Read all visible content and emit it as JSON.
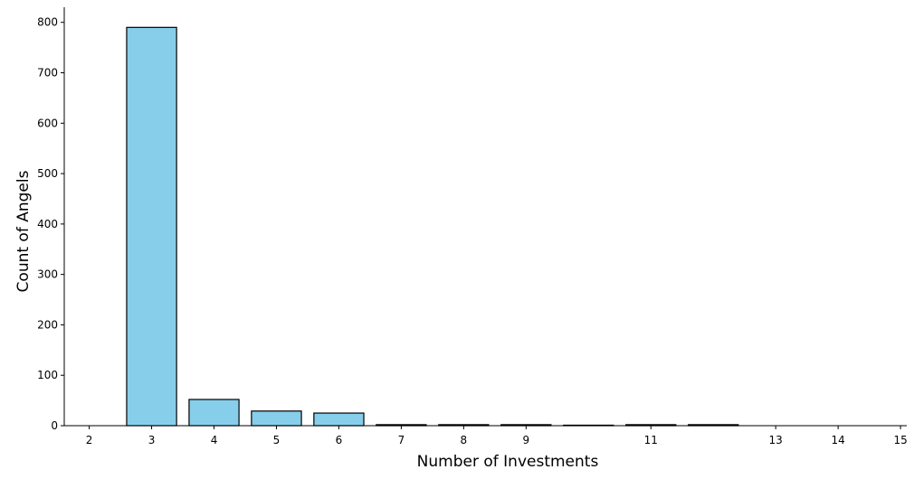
{
  "chart_data": {
    "type": "bar",
    "title": "",
    "xlabel": "Number of Investments",
    "ylabel": "Count of Angels",
    "bars": [
      {
        "x": 3,
        "value": 790
      },
      {
        "x": 4,
        "value": 52
      },
      {
        "x": 5,
        "value": 29
      },
      {
        "x": 6,
        "value": 25
      },
      {
        "x": 7,
        "value": 2
      },
      {
        "x": 8,
        "value": 2
      },
      {
        "x": 9,
        "value": 2
      },
      {
        "x": 10,
        "value": 1
      },
      {
        "x": 11,
        "value": 2
      },
      {
        "x": 12,
        "value": 2
      }
    ],
    "xticks": [
      {
        "pos": 2.0,
        "label": "2"
      },
      {
        "pos": 3.0,
        "label": "3"
      },
      {
        "pos": 4.0,
        "label": "4"
      },
      {
        "pos": 5.0,
        "label": "5"
      },
      {
        "pos": 6.0,
        "label": "6"
      },
      {
        "pos": 7.0,
        "label": "7"
      },
      {
        "pos": 8.0,
        "label": "8"
      },
      {
        "pos": 9.0,
        "label": "9"
      },
      {
        "pos": 11.0,
        "label": "11"
      },
      {
        "pos": 13.0,
        "label": "13"
      },
      {
        "pos": 14.0,
        "label": "14"
      },
      {
        "pos": 15.0,
        "label": "15"
      }
    ],
    "yticks": [
      0,
      100,
      200,
      300,
      400,
      500,
      600,
      700,
      800
    ],
    "xlim": [
      1.6,
      15.1
    ],
    "ylim": [
      0,
      830
    ],
    "grid": false,
    "colors": {
      "bar_fill": "#87CEEB",
      "bar_edge": "#000000",
      "axis": "#000000"
    }
  }
}
